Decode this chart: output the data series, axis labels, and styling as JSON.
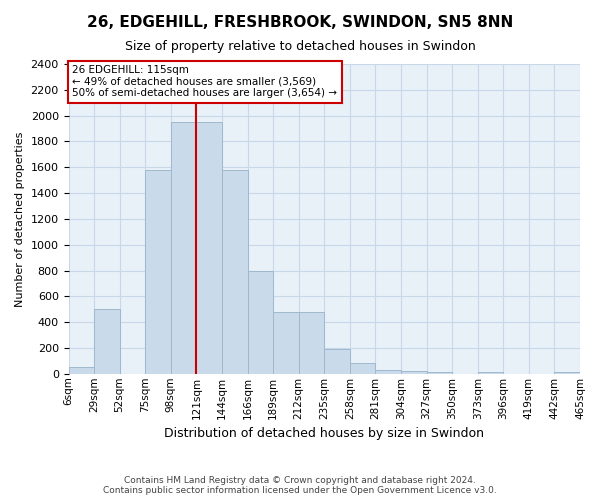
{
  "title1": "26, EDGEHILL, FRESHBROOK, SWINDON, SN5 8NN",
  "title2": "Size of property relative to detached houses in Swindon",
  "xlabel": "Distribution of detached houses by size in Swindon",
  "ylabel": "Number of detached properties",
  "footer1": "Contains HM Land Registry data © Crown copyright and database right 2024.",
  "footer2": "Contains public sector information licensed under the Open Government Licence v3.0.",
  "annotation_line1": "26 EDGEHILL: 115sqm",
  "annotation_line2": "← 49% of detached houses are smaller (3,569)",
  "annotation_line3": "50% of semi-detached houses are larger (3,654) →",
  "bar_values": [
    50,
    500,
    0,
    1575,
    1950,
    1950,
    1575,
    800,
    480,
    480,
    195,
    80,
    30,
    20,
    15,
    0,
    15,
    0,
    0,
    15
  ],
  "bin_labels": [
    "6sqm",
    "29sqm",
    "52sqm",
    "75sqm",
    "98sqm",
    "121sqm",
    "144sqm",
    "166sqm",
    "189sqm",
    "212sqm",
    "235sqm",
    "258sqm",
    "281sqm",
    "304sqm",
    "327sqm",
    "350sqm",
    "373sqm",
    "396sqm",
    "419sqm",
    "442sqm",
    "465sqm"
  ],
  "bar_color": "#c9daea",
  "bar_edge_color": "#a0b8cc",
  "grid_color": "#c8d8e8",
  "background_color": "#e8f0f8",
  "vline_color": "#cc0000",
  "annotation_box_color": "#cc0000",
  "ylim": [
    0,
    2400
  ],
  "yticks": [
    0,
    200,
    400,
    600,
    800,
    1000,
    1200,
    1400,
    1600,
    1800,
    2000,
    2200,
    2400
  ]
}
